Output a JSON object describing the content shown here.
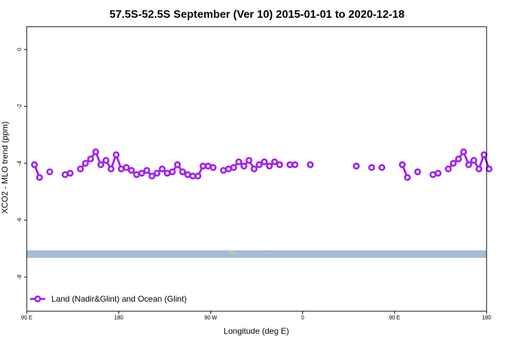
{
  "chart_data": {
    "type": "line",
    "title": "57.5S-52.5S September (Ver 10)   2015-01-01 to 2020-12-18",
    "xlabel": "Longitude (deg E)",
    "ylabel": "XCO2 - MLO trend (ppm)",
    "xlim": [
      90,
      510
    ],
    "ylim": [
      -9.2,
      0.8
    ],
    "x_ticks": [
      {
        "value": 90,
        "label": "90 E"
      },
      {
        "value": 180,
        "label": "180"
      },
      {
        "value": 270,
        "label": "90 W"
      },
      {
        "value": 360,
        "label": "0"
      },
      {
        "value": 450,
        "label": "90 E"
      },
      {
        "value": 540,
        "label": "180"
      }
    ],
    "y_ticks": [
      {
        "value": 0,
        "label": "0"
      },
      {
        "value": -2,
        "label": "-2"
      },
      {
        "value": -4,
        "label": "-4"
      },
      {
        "value": -6,
        "label": "-6"
      },
      {
        "value": -8,
        "label": "-8"
      }
    ],
    "series": [
      {
        "name": "Land (Nadir&Glint) and Ocean (Glint)",
        "color": "#a020f0",
        "segments": [
          {
            "x": [
              97.5,
              102.5
            ],
            "y": [
              -4.05,
              -4.5
            ]
          },
          {
            "x": [
              112.5
            ],
            "y": [
              -4.3
            ]
          },
          {
            "x": [
              127.5,
              132.5
            ],
            "y": [
              -4.4,
              -4.35
            ]
          },
          {
            "x": [
              142.5,
              147.5,
              152.5,
              157.5,
              162.5,
              167.5,
              172.5,
              177.5,
              182.5
            ],
            "y": [
              -4.2,
              -4.0,
              -3.85,
              -3.6,
              -4.05,
              -3.9,
              -4.2,
              -3.7,
              -4.2
            ]
          },
          {
            "x": [
              187.5,
              192.5,
              197.5,
              202.5,
              207.5,
              212.5,
              217.5,
              222.5,
              227.5,
              232.5,
              237.5,
              242.5,
              247.5,
              252.5,
              257.5,
              262.5,
              267.5
            ],
            "y": [
              -4.15,
              -4.25,
              -4.4,
              -4.35,
              -4.25,
              -4.45,
              -4.35,
              -4.2,
              -4.35,
              -4.3,
              -4.05,
              -4.3,
              -4.4,
              -4.45,
              -4.45,
              -4.1,
              -4.1
            ]
          },
          {
            "x": [
              272.5
            ],
            "y": [
              -4.15
            ]
          },
          {
            "x": [
              282.5,
              287.5,
              292.5,
              297.5,
              302.5,
              307.5,
              312.5,
              317.5,
              322.5,
              327.5,
              332.5,
              337.5
            ],
            "y": [
              -4.25,
              -4.2,
              -4.15,
              -3.95,
              -4.1,
              -3.9,
              -4.2,
              -4.05,
              -3.95,
              -4.1,
              -3.95,
              -4.05
            ]
          },
          {
            "x": [
              347.5,
              352.5
            ],
            "y": [
              -4.05,
              -4.05
            ]
          },
          {
            "x": [
              367.5
            ],
            "y": [
              -4.05
            ]
          },
          {
            "x": [
              412.5
            ],
            "y": [
              -4.1
            ]
          },
          {
            "x": [
              427.5
            ],
            "y": [
              -4.15
            ]
          },
          {
            "x": [
              437.5
            ],
            "y": [
              -4.15
            ]
          },
          {
            "x": [
              457.5,
              462.5
            ],
            "y": [
              -4.05,
              -4.5
            ]
          },
          {
            "x": [
              472.5
            ],
            "y": [
              -4.3
            ]
          },
          {
            "x": [
              487.5,
              492.5
            ],
            "y": [
              -4.4,
              -4.35
            ]
          },
          {
            "x": [
              502.5,
              507.5,
              512.5,
              517.5,
              522.5,
              527.5,
              532.5,
              537.5,
              542.5
            ],
            "y": [
              -4.2,
              -4.0,
              -3.85,
              -3.6,
              -4.05,
              -3.9,
              -4.2,
              -3.7,
              -4.2
            ]
          }
        ]
      }
    ],
    "legend": {
      "placement": "bottom-left"
    },
    "grid": false
  },
  "colors": {
    "series": "#a020f0",
    "land_band": "#a6bcd9",
    "land_dots": "#f5d247",
    "axis": "#000000"
  }
}
